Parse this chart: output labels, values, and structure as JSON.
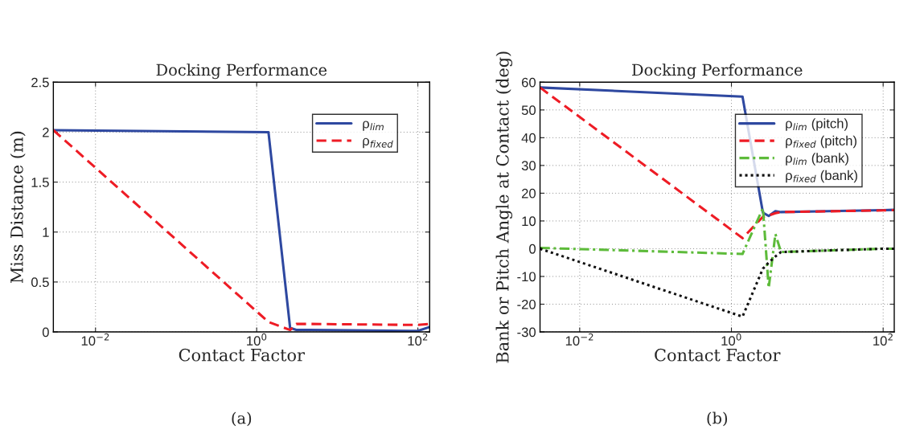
{
  "chart_data": [
    {
      "type": "line",
      "title": "Docking Performance",
      "xlabel": "Contact Factor",
      "ylabel": "Miss Distance (m)",
      "log": "x",
      "grid": true,
      "legend": "top right",
      "marker": "none",
      "x": [
        0.003,
        1.4,
        2.6,
        3.1,
        3.8,
        4.5,
        100,
        140
      ],
      "xlim": [
        0.003,
        140
      ],
      "xticks": [
        {
          "value": 0.01,
          "label": "10$^{−2}$"
        },
        {
          "value": 1,
          "label": "10$^{0}$"
        },
        {
          "value": 100,
          "label": "10$^{2}$"
        }
      ],
      "ylim": [
        0,
        2.5
      ],
      "yticks": [
        0,
        0.5,
        1,
        1.5,
        2,
        2.5
      ],
      "series": [
        {
          "name": "ρ$_{lim}$",
          "color": "#2e48a0",
          "line_style": "solid",
          "values": [
            2.02,
            2.0,
            0.04,
            0.02,
            0.02,
            0.02,
            0.01,
            0.05
          ]
        },
        {
          "name": "ρ$_{fixed}$",
          "color": "#ee1c25",
          "line_style": "dashed",
          "values": [
            2.02,
            0.1,
            0.02,
            0.08,
            0.08,
            0.08,
            0.07,
            0.08
          ]
        }
      ],
      "annotations": [
        "(a)"
      ]
    },
    {
      "type": "line",
      "title": "Docking Performance",
      "xlabel": "Contact Factor",
      "ylabel": "Bank or Pitch Angle at Contact (deg)",
      "log": "x",
      "grid": true,
      "legend": "top right",
      "marker": "none",
      "x": [
        0.003,
        1.4,
        2.6,
        3.1,
        3.8,
        4.5,
        100,
        140
      ],
      "xlim": [
        0.003,
        140
      ],
      "xticks": [
        {
          "value": 0.01,
          "label": "10$^{−2}$"
        },
        {
          "value": 1,
          "label": "10$^{0}$"
        },
        {
          "value": 100,
          "label": "10$^{2}$"
        }
      ],
      "ylim": [
        -30,
        60
      ],
      "yticks": [
        -30,
        -20,
        -10,
        0,
        10,
        20,
        30,
        40,
        50,
        60
      ],
      "series": [
        {
          "name": "ρ$_{lim}$ (pitch)",
          "color": "#2e48a0",
          "line_style": "solid",
          "values": [
            58.1,
            54.8,
            13,
            11.8,
            13.5,
            13.2,
            13.9,
            14
          ]
        },
        {
          "name": "ρ$_{fixed}$ (pitch)",
          "color": "#ee1c25",
          "line_style": "dashed",
          "values": [
            58.1,
            3.8,
            11.5,
            12,
            12.8,
            13.2,
            13.8,
            13.9
          ]
        },
        {
          "name": "ρ$_{lim}$ (bank)",
          "color": "#5dbb3a",
          "line_style": "dashdot",
          "values": [
            0.3,
            -1.9,
            14.6,
            -14.1,
            5.3,
            -1.2,
            0,
            0
          ]
        },
        {
          "name": "ρ$_{fixed}$ (bank)",
          "color": "#111111",
          "line_style": "dotted",
          "values": [
            0,
            -24.5,
            -7.2,
            -5,
            -2.8,
            -1.2,
            0,
            0
          ]
        }
      ],
      "annotations": [
        "(b)"
      ]
    }
  ]
}
